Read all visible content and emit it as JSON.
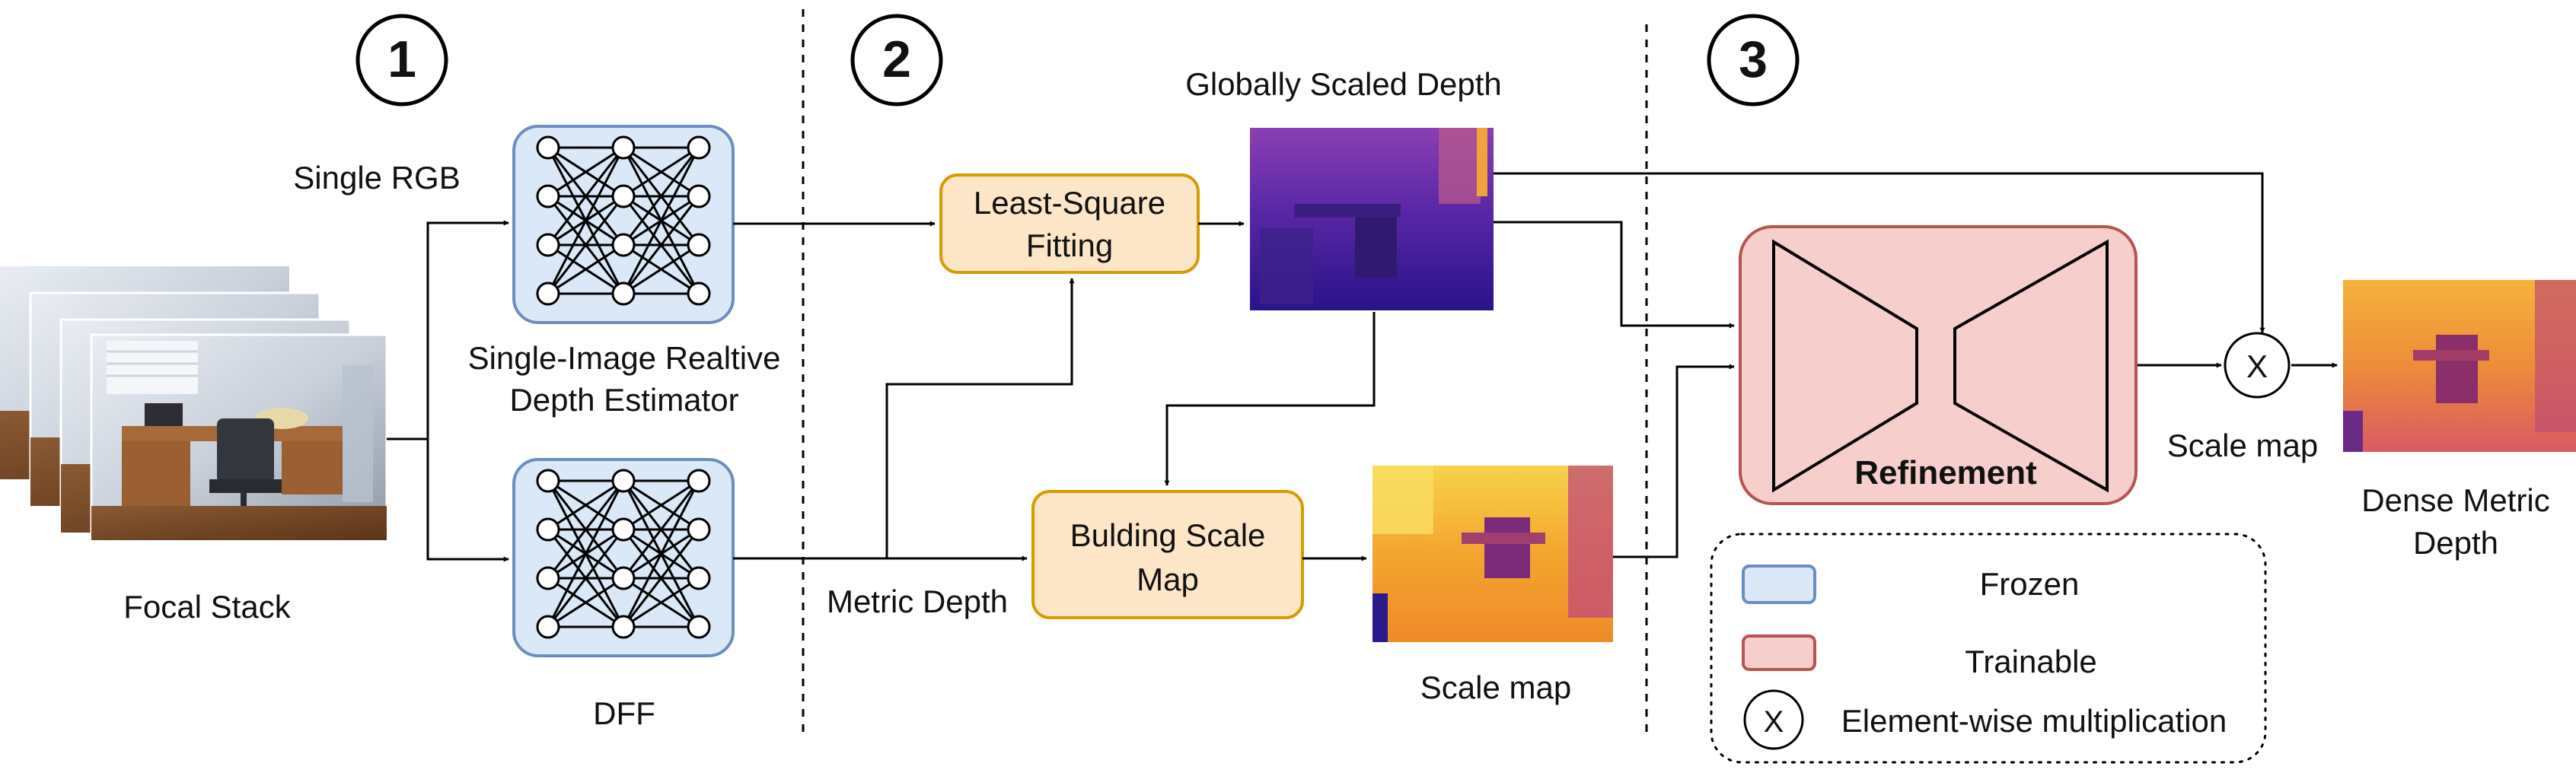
{
  "stages": {
    "one": "1",
    "two": "2",
    "three": "3"
  },
  "inputs": {
    "single_rgb": "Single RGB",
    "focal_stack": "Focal Stack"
  },
  "networks": {
    "relative_depth_line1": "Single-Image Realtive",
    "relative_depth_line2": "Depth Estimator",
    "dff": "DFF"
  },
  "boxes": {
    "lsq_line1": "Least-Square",
    "lsq_line2": "Fitting",
    "scale_map_line1": "Bulding Scale",
    "scale_map_line2": "Map",
    "refinement": "Refinement"
  },
  "labels": {
    "globally_scaled_depth": "Globally Scaled Depth",
    "metric_depth": "Metric Depth",
    "scale_map_bottom": "Scale map",
    "scale_map_right": "Scale map",
    "dense_metric_line1": "Dense Metric",
    "dense_metric_line2": "Depth",
    "multiply_symbol": "X"
  },
  "legend": {
    "frozen": "Frozen",
    "trainable": "Trainable",
    "elementwise": "Element-wise multiplication",
    "symbol": "X"
  },
  "colors": {
    "frozen_fill": "#dbe8f8",
    "frozen_stroke": "#6c8ebf",
    "trainable_fill": "#f6cfcd",
    "trainable_stroke": "#b85450",
    "orange_fill": "#fde6c8",
    "orange_stroke": "#d79b00"
  }
}
